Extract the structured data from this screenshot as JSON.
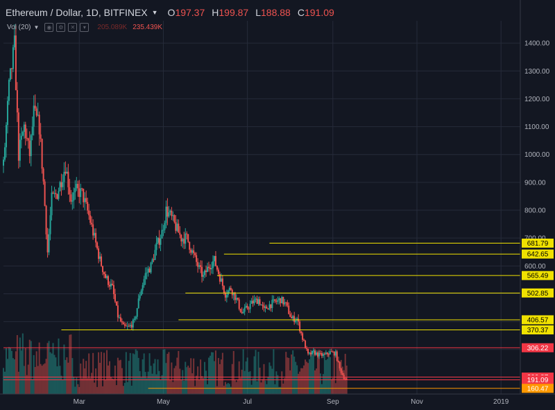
{
  "header": {
    "symbol": "Ethereum / Dollar, 1D, BITFINEX",
    "open_label": "O",
    "open": "197.37",
    "high_label": "H",
    "high": "199.87",
    "low_label": "L",
    "low": "188.88",
    "close_label": "C",
    "close": "191.09"
  },
  "volume": {
    "label": "Vol (20)",
    "value1": "205.089K",
    "value2": "235.439K"
  },
  "chart_data": {
    "type": "candlestick",
    "title": "Ethereum / Dollar, 1D, BITFINEX",
    "x_range": [
      "2018-01-05",
      "2019-01-15"
    ],
    "x_ticks": [
      {
        "date": "2018-03-01",
        "label": "Mar"
      },
      {
        "date": "2018-05-01",
        "label": "May"
      },
      {
        "date": "2018-07-01",
        "label": "Jul"
      },
      {
        "date": "2018-09-01",
        "label": "Sep"
      },
      {
        "date": "2018-11-01",
        "label": "Nov"
      },
      {
        "date": "2019-01-01",
        "label": "2019"
      }
    ],
    "y_range": [
      140,
      1480
    ],
    "y_ticks": [
      1400,
      1300,
      1200,
      1100,
      1000,
      900,
      800,
      700,
      600,
      500,
      400,
      300,
      200
    ],
    "y_tick_labels": [
      "1400.00",
      "1300.00",
      "1200.00",
      "1100.00",
      "1000.00",
      "900.00",
      "800.00",
      "700.00",
      "600.00",
      "500.00",
      "400.00",
      "300.00",
      "200.00"
    ],
    "price_path": [
      [
        "2018-01-05",
        960
      ],
      [
        "2018-01-09",
        1240
      ],
      [
        "2018-01-13",
        1390
      ],
      [
        "2018-01-16",
        1000
      ],
      [
        "2018-01-20",
        1100
      ],
      [
        "2018-01-24",
        1000
      ],
      [
        "2018-01-27",
        1150
      ],
      [
        "2018-01-31",
        1100
      ],
      [
        "2018-02-03",
        900
      ],
      [
        "2018-02-06",
        650
      ],
      [
        "2018-02-09",
        840
      ],
      [
        "2018-02-13",
        860
      ],
      [
        "2018-02-19",
        960
      ],
      [
        "2018-02-23",
        840
      ],
      [
        "2018-02-27",
        870
      ],
      [
        "2018-03-03",
        860
      ],
      [
        "2018-03-08",
        780
      ],
      [
        "2018-03-12",
        700
      ],
      [
        "2018-03-16",
        620
      ],
      [
        "2018-03-20",
        560
      ],
      [
        "2018-03-25",
        520
      ],
      [
        "2018-03-29",
        420
      ],
      [
        "2018-04-02",
        380
      ],
      [
        "2018-04-06",
        380
      ],
      [
        "2018-04-10",
        400
      ],
      [
        "2018-04-14",
        500
      ],
      [
        "2018-04-18",
        570
      ],
      [
        "2018-04-22",
        600
      ],
      [
        "2018-04-26",
        670
      ],
      [
        "2018-04-30",
        720
      ],
      [
        "2018-05-03",
        800
      ],
      [
        "2018-05-06",
        780
      ],
      [
        "2018-05-10",
        740
      ],
      [
        "2018-05-14",
        700
      ],
      [
        "2018-05-18",
        700
      ],
      [
        "2018-05-22",
        650
      ],
      [
        "2018-05-26",
        600
      ],
      [
        "2018-05-30",
        560
      ],
      [
        "2018-06-03",
        600
      ],
      [
        "2018-06-07",
        620
      ],
      [
        "2018-06-11",
        560
      ],
      [
        "2018-06-15",
        500
      ],
      [
        "2018-06-19",
        520
      ],
      [
        "2018-06-23",
        480
      ],
      [
        "2018-06-27",
        430
      ],
      [
        "2018-07-01",
        450
      ],
      [
        "2018-07-05",
        470
      ],
      [
        "2018-07-09",
        480
      ],
      [
        "2018-07-13",
        440
      ],
      [
        "2018-07-17",
        460
      ],
      [
        "2018-07-21",
        470
      ],
      [
        "2018-07-25",
        480
      ],
      [
        "2018-07-29",
        460
      ],
      [
        "2018-08-02",
        410
      ],
      [
        "2018-08-06",
        410
      ],
      [
        "2018-08-10",
        340
      ],
      [
        "2018-08-14",
        280
      ],
      [
        "2018-08-18",
        290
      ],
      [
        "2018-08-22",
        280
      ],
      [
        "2018-08-26",
        280
      ],
      [
        "2018-08-30",
        290
      ],
      [
        "2018-09-03",
        285
      ],
      [
        "2018-09-06",
        230
      ],
      [
        "2018-09-09",
        200
      ],
      [
        "2018-09-11",
        191
      ]
    ],
    "levels": [
      {
        "label": "681.79",
        "value": 681.79,
        "color": "#f0e100",
        "start": "2018-07-17"
      },
      {
        "label": "642.65",
        "value": 642.65,
        "color": "#f0e100",
        "start": "2018-06-14"
      },
      {
        "label": "565.49",
        "value": 565.49,
        "color": "#f0e100",
        "start": "2018-06-09"
      },
      {
        "label": "502.85",
        "value": 502.85,
        "color": "#f0e100",
        "start": "2018-05-17"
      },
      {
        "label": "406.57",
        "value": 406.57,
        "color": "#f0e100",
        "start": "2018-05-12"
      },
      {
        "label": "370.37",
        "value": 370.37,
        "color": "#f0e100",
        "start": "2018-02-16"
      },
      {
        "label": "306.22",
        "value": 306.22,
        "color": "#f23645",
        "start": "2018-01-05"
      },
      {
        "label": "200.87",
        "value": 200.87,
        "color": "#f23645",
        "start": "2018-01-05"
      },
      {
        "label": "191.09",
        "value": 191.09,
        "color": "#f23645",
        "start": "2018-01-05"
      },
      {
        "label": "160.47",
        "value": 160.47,
        "color": "#ff9800",
        "start": "2018-04-20"
      }
    ],
    "colors": {
      "up": "#26a69a",
      "down": "#ef5350",
      "background": "#131722",
      "grid": "#262b3a"
    }
  }
}
